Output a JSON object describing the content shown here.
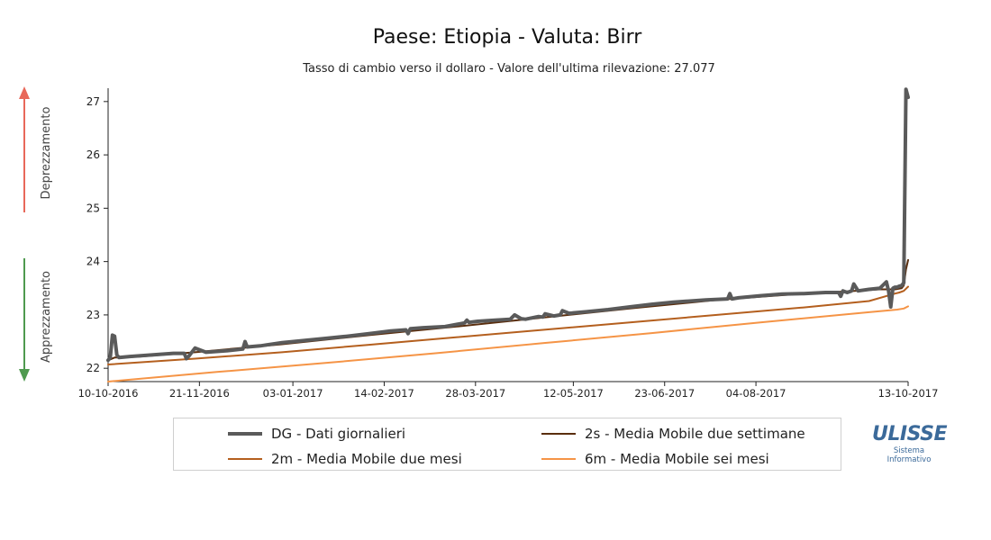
{
  "chart_data": {
    "type": "line",
    "title": "Paese: Etiopia - Valuta: Birr",
    "subtitle": "Tasso di cambio verso il dollaro - Valore dell'ultima rilevazione: 27.077",
    "ylim": [
      21.75,
      27.25
    ],
    "yticks": [
      22,
      23,
      24,
      25,
      26,
      27
    ],
    "xticks": [
      {
        "label": "10-10-2016",
        "day": 0
      },
      {
        "label": "21-11-2016",
        "day": 42
      },
      {
        "label": "03-01-2017",
        "day": 85
      },
      {
        "label": "14-02-2017",
        "day": 127
      },
      {
        "label": "28-03-2017",
        "day": 169
      },
      {
        "label": "12-05-2017",
        "day": 214
      },
      {
        "label": "23-06-2017",
        "day": 256
      },
      {
        "label": "04-08-2017",
        "day": 298
      },
      {
        "label": "13-10-2017",
        "day": 368
      }
    ],
    "xlim": [
      0,
      368
    ],
    "side_labels": {
      "up": "Deprezzamento",
      "down": "Apprezzamento"
    },
    "series": [
      {
        "key": "dg",
        "name": "DG - Dati giornalieri",
        "color": "#5a5a5a",
        "width": 4,
        "x": [
          0,
          1,
          2,
          3,
          4,
          5,
          10,
          20,
          30,
          35,
          36,
          37,
          40,
          45,
          55,
          62,
          63,
          64,
          70,
          80,
          90,
          100,
          110,
          120,
          130,
          137,
          138,
          139,
          145,
          155,
          160,
          164,
          165,
          166,
          170,
          178,
          185,
          187,
          190,
          192,
          198,
          200,
          201,
          205,
          208,
          209,
          212,
          220,
          230,
          240,
          250,
          260,
          275,
          285,
          286,
          287,
          290,
          300,
          310,
          320,
          330,
          336,
          337,
          338,
          340,
          342,
          343,
          345,
          350,
          355,
          358,
          359,
          360,
          361,
          362,
          363,
          364,
          365,
          366,
          367,
          368
        ],
        "values": [
          22.15,
          22.2,
          22.62,
          22.6,
          22.25,
          22.2,
          22.22,
          22.25,
          22.28,
          22.28,
          22.18,
          22.22,
          22.38,
          22.3,
          22.33,
          22.36,
          22.5,
          22.4,
          22.42,
          22.48,
          22.52,
          22.56,
          22.6,
          22.65,
          22.7,
          22.72,
          22.65,
          22.74,
          22.76,
          22.78,
          22.82,
          22.85,
          22.9,
          22.86,
          22.88,
          22.9,
          22.92,
          23.0,
          22.93,
          22.92,
          22.97,
          22.96,
          23.02,
          22.98,
          23.0,
          23.08,
          23.03,
          23.06,
          23.1,
          23.15,
          23.2,
          23.24,
          23.28,
          23.3,
          23.4,
          23.3,
          23.32,
          23.36,
          23.39,
          23.4,
          23.42,
          23.42,
          23.35,
          23.45,
          23.42,
          23.45,
          23.58,
          23.45,
          23.48,
          23.5,
          23.62,
          23.45,
          23.15,
          23.5,
          23.52,
          23.52,
          23.54,
          23.55,
          23.6,
          27.23,
          27.08
        ]
      },
      {
        "key": "2s",
        "name": "2s - Media Mobile due settimane",
        "color": "#5a2e0e",
        "width": 2,
        "x": [
          0,
          3,
          6,
          15,
          40,
          80,
          120,
          160,
          200,
          240,
          280,
          320,
          340,
          355,
          362,
          365,
          366,
          367,
          368
        ],
        "values": [
          22.15,
          22.2,
          22.2,
          22.22,
          22.3,
          22.45,
          22.62,
          22.78,
          22.95,
          23.12,
          23.28,
          23.4,
          23.44,
          23.48,
          23.48,
          23.5,
          23.55,
          23.85,
          24.03
        ]
      },
      {
        "key": "2m",
        "name": "2m - Media Mobile due mesi",
        "color": "#b45f1e",
        "width": 2,
        "x": [
          0,
          40,
          80,
          120,
          160,
          200,
          240,
          280,
          320,
          350,
          362,
          364,
          366,
          368
        ],
        "values": [
          22.07,
          22.18,
          22.3,
          22.44,
          22.58,
          22.72,
          22.86,
          23.0,
          23.14,
          23.26,
          23.4,
          23.42,
          23.45,
          23.53
        ]
      },
      {
        "key": "6m",
        "name": "6m - Media Mobile sei mesi",
        "color": "#f59446",
        "width": 2,
        "x": [
          0,
          50,
          100,
          150,
          200,
          250,
          300,
          350,
          363,
          366,
          368
        ],
        "values": [
          21.75,
          21.93,
          22.1,
          22.28,
          22.47,
          22.66,
          22.86,
          23.05,
          23.1,
          23.12,
          23.16
        ]
      }
    ]
  },
  "legend": {
    "dg_label": "DG - Dati giornalieri",
    "s2_label": "2s - Media Mobile due settimane",
    "m2_label": "2m - Media Mobile due mesi",
    "m6_label": "6m - Media Mobile sei mesi"
  },
  "logo": {
    "main": "ULISSE",
    "sub1": "Sistema",
    "sub2": "Informativo"
  },
  "colors": {
    "arrow_up": "#e8685a",
    "arrow_down": "#4f9a4f",
    "axis": "#222222"
  }
}
